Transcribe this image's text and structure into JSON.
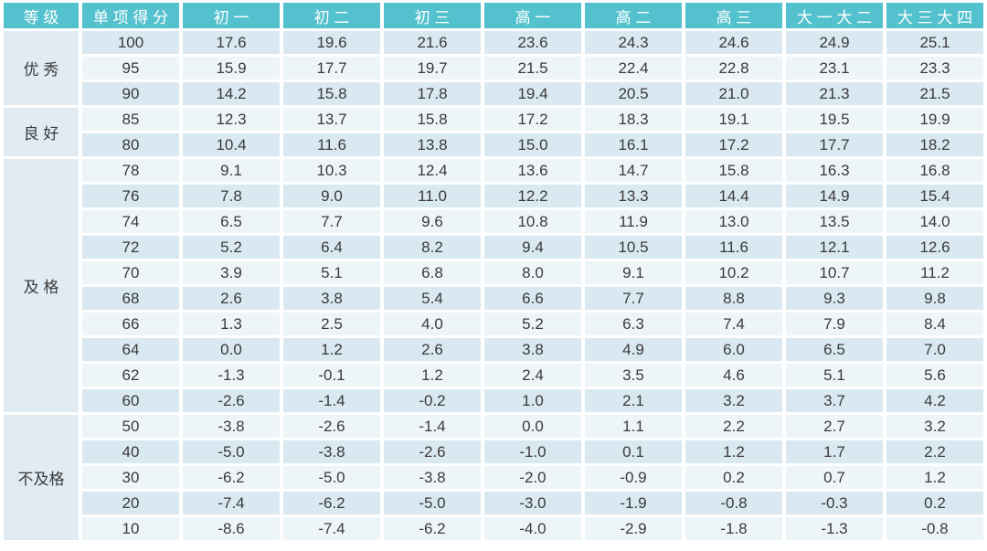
{
  "colors": {
    "header_bg": "#54C1CE",
    "header_text": "#FFFFFF",
    "row_dark": "#D9E8F1",
    "row_light": "#EEF5F9",
    "grade_cell_bg": "#E0EBF4",
    "body_text": "#3A3A3A",
    "divider": "#FFFFFF"
  },
  "chart_data": {
    "type": "table",
    "columns": [
      "等 级",
      "单 项 得 分",
      "初 一",
      "初 二",
      "初 三",
      "高 一",
      "高 二",
      "高 三",
      "大 一 大 二",
      "大 三 大 四"
    ],
    "groups": [
      {
        "grade": "优 秀",
        "rows": [
          {
            "score": "100",
            "values": [
              "17.6",
              "19.6",
              "21.6",
              "23.6",
              "24.3",
              "24.6",
              "24.9",
              "25.1"
            ]
          },
          {
            "score": "95",
            "values": [
              "15.9",
              "17.7",
              "19.7",
              "21.5",
              "22.4",
              "22.8",
              "23.1",
              "23.3"
            ]
          },
          {
            "score": "90",
            "values": [
              "14.2",
              "15.8",
              "17.8",
              "19.4",
              "20.5",
              "21.0",
              "21.3",
              "21.5"
            ]
          }
        ]
      },
      {
        "grade": "良 好",
        "rows": [
          {
            "score": "85",
            "values": [
              "12.3",
              "13.7",
              "15.8",
              "17.2",
              "18.3",
              "19.1",
              "19.5",
              "19.9"
            ]
          },
          {
            "score": "80",
            "values": [
              "10.4",
              "11.6",
              "13.8",
              "15.0",
              "16.1",
              "17.2",
              "17.7",
              "18.2"
            ]
          }
        ]
      },
      {
        "grade": "及 格",
        "rows": [
          {
            "score": "78",
            "values": [
              "9.1",
              "10.3",
              "12.4",
              "13.6",
              "14.7",
              "15.8",
              "16.3",
              "16.8"
            ]
          },
          {
            "score": "76",
            "values": [
              "7.8",
              "9.0",
              "11.0",
              "12.2",
              "13.3",
              "14.4",
              "14.9",
              "15.4"
            ]
          },
          {
            "score": "74",
            "values": [
              "6.5",
              "7.7",
              "9.6",
              "10.8",
              "11.9",
              "13.0",
              "13.5",
              "14.0"
            ]
          },
          {
            "score": "72",
            "values": [
              "5.2",
              "6.4",
              "8.2",
              "9.4",
              "10.5",
              "11.6",
              "12.1",
              "12.6"
            ]
          },
          {
            "score": "70",
            "values": [
              "3.9",
              "5.1",
              "6.8",
              "8.0",
              "9.1",
              "10.2",
              "10.7",
              "11.2"
            ]
          },
          {
            "score": "68",
            "values": [
              "2.6",
              "3.8",
              "5.4",
              "6.6",
              "7.7",
              "8.8",
              "9.3",
              "9.8"
            ]
          },
          {
            "score": "66",
            "values": [
              "1.3",
              "2.5",
              "4.0",
              "5.2",
              "6.3",
              "7.4",
              "7.9",
              "8.4"
            ]
          },
          {
            "score": "64",
            "values": [
              "0.0",
              "1.2",
              "2.6",
              "3.8",
              "4.9",
              "6.0",
              "6.5",
              "7.0"
            ]
          },
          {
            "score": "62",
            "values": [
              "-1.3",
              "-0.1",
              "1.2",
              "2.4",
              "3.5",
              "4.6",
              "5.1",
              "5.6"
            ]
          },
          {
            "score": "60",
            "values": [
              "-2.6",
              "-1.4",
              "-0.2",
              "1.0",
              "2.1",
              "3.2",
              "3.7",
              "4.2"
            ]
          }
        ]
      },
      {
        "grade": "不及格",
        "rows": [
          {
            "score": "50",
            "values": [
              "-3.8",
              "-2.6",
              "-1.4",
              "0.0",
              "1.1",
              "2.2",
              "2.7",
              "3.2"
            ]
          },
          {
            "score": "40",
            "values": [
              "-5.0",
              "-3.8",
              "-2.6",
              "-1.0",
              "0.1",
              "1.2",
              "1.7",
              "2.2"
            ]
          },
          {
            "score": "30",
            "values": [
              "-6.2",
              "-5.0",
              "-3.8",
              "-2.0",
              "-0.9",
              "0.2",
              "0.7",
              "1.2"
            ]
          },
          {
            "score": "20",
            "values": [
              "-7.4",
              "-6.2",
              "-5.0",
              "-3.0",
              "-1.9",
              "-0.8",
              "-0.3",
              "0.2"
            ]
          },
          {
            "score": "10",
            "values": [
              "-8.6",
              "-7.4",
              "-6.2",
              "-4.0",
              "-2.9",
              "-1.8",
              "-1.3",
              "-0.8"
            ]
          }
        ]
      }
    ]
  }
}
